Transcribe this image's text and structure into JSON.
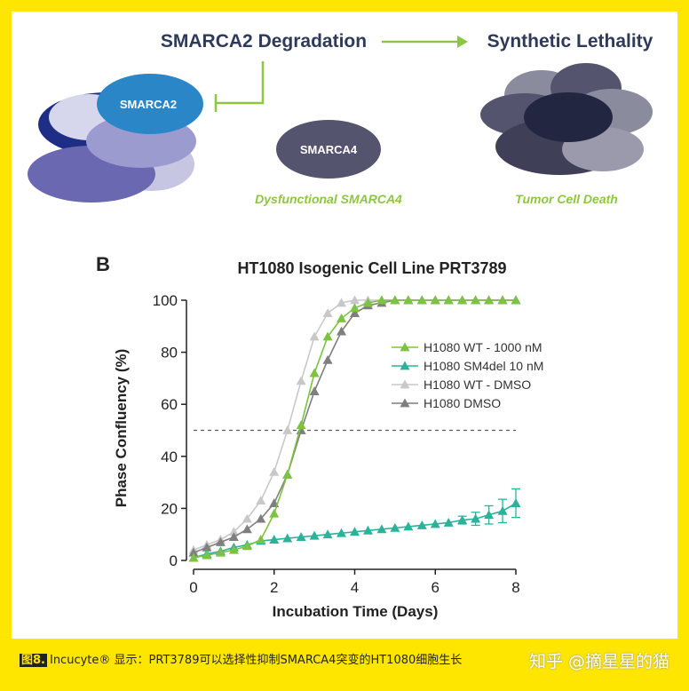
{
  "top": {
    "degradation": "SMARCA2 Degradation",
    "lethality": "Synthetic Lethality",
    "smarca2": "SMARCA2",
    "smarca4": "SMARCA4",
    "dysfunctional": "Dysfunctional SMARCA4",
    "tumor_death": "Tumor Cell Death"
  },
  "colors": {
    "frame": "#FFE600",
    "accent_green": "#8DC63F",
    "title_navy": "#2E3A5C",
    "wt1000": "#7DC242",
    "sm4del": "#2BB39A",
    "wt_dmso": "#C8C8C8",
    "dmso": "#7F7F7F"
  },
  "panel_b": {
    "label": "B"
  },
  "chart_data": {
    "type": "line",
    "title": "HT1080 Isogenic Cell Line PRT3789",
    "xlabel": "Incubation Time (Days)",
    "ylabel": "Phase Confluency (%)",
    "xlim": [
      0,
      8
    ],
    "ylim": [
      0,
      100
    ],
    "xticks": [
      "0",
      "2",
      "4",
      "6",
      "8"
    ],
    "yticks": [
      "0",
      "20",
      "40",
      "60",
      "80",
      "100"
    ],
    "reference_line": {
      "y": 50,
      "style": "dashed"
    },
    "legend_position": "right-center",
    "series": [
      {
        "name": "H1080 WT - 1000 nM",
        "color": "#7DC242",
        "x": [
          0,
          0.33,
          0.67,
          1,
          1.33,
          1.67,
          2,
          2.33,
          2.67,
          3,
          3.33,
          3.67,
          4,
          4.33,
          4.67,
          5,
          5.33,
          5.67,
          6,
          6.33,
          6.67,
          7,
          7.33,
          7.67,
          8
        ],
        "y": [
          1,
          2,
          3,
          4,
          5.5,
          8,
          18,
          33,
          52,
          72,
          86,
          93,
          97,
          99,
          100,
          100,
          100,
          100,
          100,
          100,
          100,
          100,
          100,
          100,
          100
        ]
      },
      {
        "name": "H1080 SM4del 10 nM",
        "color": "#2BB39A",
        "x": [
          0,
          0.33,
          0.67,
          1,
          1.33,
          1.67,
          2,
          2.33,
          2.67,
          3,
          3.33,
          3.67,
          4,
          4.33,
          4.67,
          5,
          5.33,
          5.67,
          6,
          6.33,
          6.67,
          7,
          7.33,
          7.67,
          8
        ],
        "y": [
          1,
          2.5,
          3.5,
          5,
          6,
          7.5,
          8,
          8.5,
          9,
          9.5,
          10,
          10.5,
          11,
          11.5,
          12,
          12.5,
          13,
          13.5,
          14,
          14.5,
          15.5,
          16,
          17.5,
          19,
          22
        ],
        "error": [
          0,
          0,
          0,
          0,
          0,
          0,
          0,
          0,
          0,
          0,
          0,
          0,
          0,
          0,
          0,
          0,
          0,
          0,
          0,
          0,
          1.5,
          2.5,
          3.5,
          4.5,
          5.5
        ]
      },
      {
        "name": "H1080 WT - DMSO",
        "color": "#C8C8C8",
        "x": [
          0,
          0.33,
          0.67,
          1,
          1.33,
          1.67,
          2,
          2.33,
          2.67,
          3,
          3.33,
          3.67,
          4,
          4.33,
          4.67,
          5,
          5.33,
          5.67,
          6,
          6.33,
          6.67,
          7,
          7.33,
          7.67,
          8
        ],
        "y": [
          4,
          6,
          8,
          11,
          16,
          23,
          34,
          50,
          69,
          86,
          95,
          99,
          100,
          100,
          100,
          100,
          100,
          100,
          100,
          100,
          100,
          100,
          100,
          100,
          100
        ]
      },
      {
        "name": "H1080 DMSO",
        "color": "#7F7F7F",
        "x": [
          0,
          0.33,
          0.67,
          1,
          1.33,
          1.67,
          2,
          2.33,
          2.67,
          3,
          3.33,
          3.67,
          4,
          4.33,
          4.67,
          5,
          5.33,
          5.67,
          6,
          6.33,
          6.67,
          7,
          7.33,
          7.67,
          8
        ],
        "y": [
          3,
          5,
          7,
          9,
          12,
          16,
          22,
          33,
          50,
          65,
          77,
          88,
          95,
          98,
          99,
          100,
          100,
          100,
          100,
          100,
          100,
          100,
          100,
          100,
          100
        ]
      }
    ]
  },
  "caption": {
    "fig_tag": "图8.",
    "text": "Incucyte® 显示：PRT3789可以选择性抑制SMARCA4突变的HT1080细胞生长",
    "watermark": "知乎 @摘星星的猫"
  }
}
